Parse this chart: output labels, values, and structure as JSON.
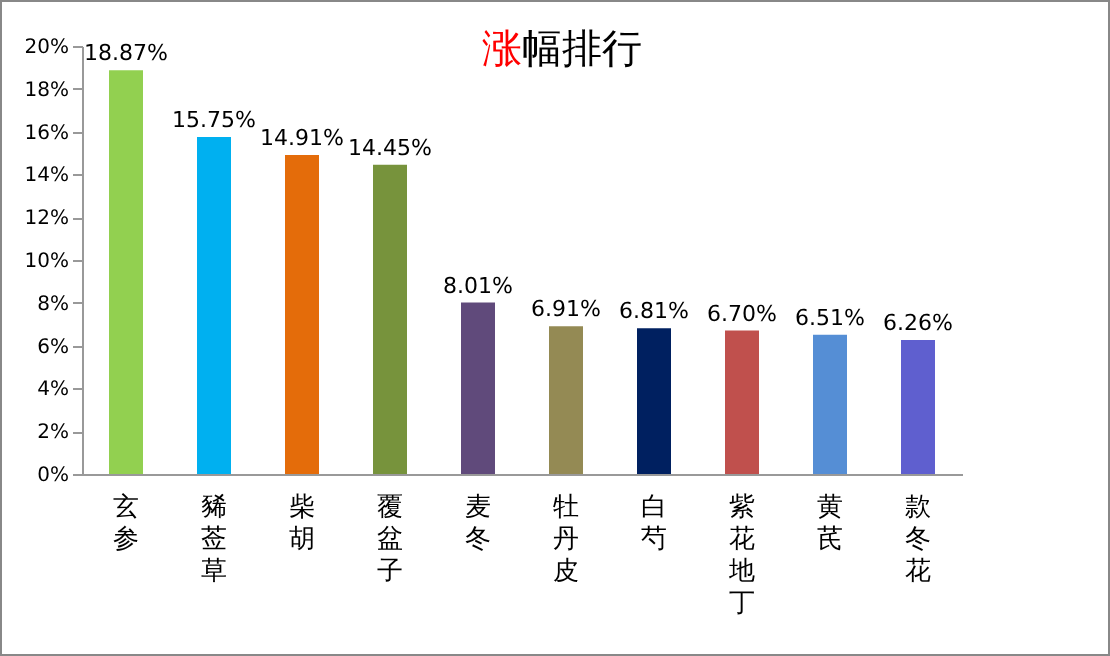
{
  "chart_data": {
    "type": "bar",
    "title": "涨幅排行",
    "categories": [
      "玄参",
      "豨莶草",
      "柴胡",
      "覆盆子",
      "麦冬",
      "牡丹皮",
      "白芍",
      "紫花地丁",
      "黄芪",
      "款冬花"
    ],
    "values": [
      18.87,
      15.75,
      14.91,
      14.45,
      8.01,
      6.91,
      6.81,
      6.7,
      6.51,
      6.26
    ],
    "colors": [
      "#92d050",
      "#00b0f0",
      "#e46c0a",
      "#77933c",
      "#604a7b",
      "#948a54",
      "#002060",
      "#c0504d",
      "#558ed5",
      "#5f5fcf"
    ],
    "value_labels": [
      "18.87%",
      "15.75%",
      "14.91%",
      "14.45%",
      "8.01%",
      "6.91%",
      "6.81%",
      "6.70%",
      "6.51%",
      "6.26%"
    ],
    "ylim": [
      0,
      20
    ],
    "yticks": [
      {
        "value": 0,
        "label": "0%"
      },
      {
        "value": 2,
        "label": "2%"
      },
      {
        "value": 4,
        "label": "4%"
      },
      {
        "value": 6,
        "label": "6%"
      },
      {
        "value": 8,
        "label": "8%"
      },
      {
        "value": 10,
        "label": "10%"
      },
      {
        "value": 12,
        "label": "12%"
      },
      {
        "value": 14,
        "label": "14%"
      },
      {
        "value": 16,
        "label": "16%"
      },
      {
        "value": 18,
        "label": "18%"
      },
      {
        "value": 20,
        "label": "20%"
      }
    ],
    "grid": false
  }
}
